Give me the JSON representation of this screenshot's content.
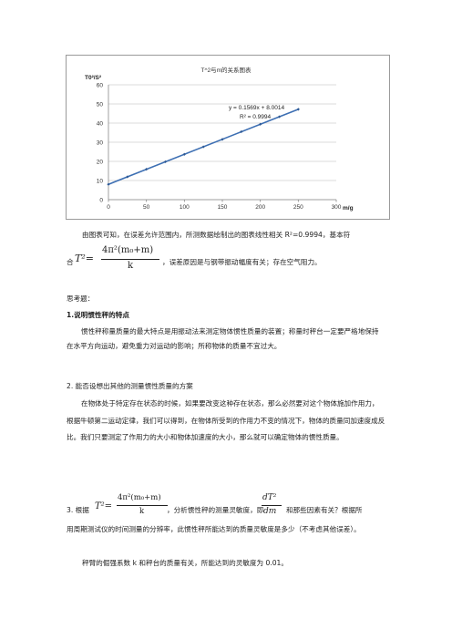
{
  "chart_data": {
    "type": "scatter",
    "title": "T^2与m的关系图表",
    "ylabel": "T0²/S²",
    "xlabel": "m/g",
    "xlim": [
      0,
      300
    ],
    "ylim": [
      0,
      60
    ],
    "xticks": [
      0,
      50,
      100,
      150,
      200,
      250,
      300
    ],
    "yticks": [
      0,
      10,
      20,
      30,
      40,
      50,
      60
    ],
    "grid": "horizontal",
    "series": [
      {
        "x": [
          0,
          25,
          50,
          75,
          100,
          125,
          150,
          175,
          200,
          225,
          250
        ],
        "y": [
          8.0,
          11.9,
          15.9,
          19.8,
          23.7,
          27.6,
          31.5,
          35.5,
          39.4,
          43.3,
          47.2
        ]
      }
    ],
    "trendline": {
      "slope": 0.1569,
      "intercept": 8.0014,
      "x_range": [
        0,
        250
      ]
    },
    "annotations": [
      "y = 0.1569x + 8.0014",
      "R² = 0.9994"
    ]
  },
  "text": {
    "conclusion_line1": "由图表可知，在误差允许范围内，所测数据绘制出的图表线性相关 R²=0.9994，基本符",
    "conclusion_he": "合",
    "conclusion_line2": "，误差原因是与钢带振动幅度有关；存在空气阻力。",
    "questions_title": "思考题：",
    "q1_title": "1.说明惯性秤的特点",
    "q1_body": "惯性秤称量质量的最大特点是用振动法来测定物体惯性质量的装置；称量时秤台一定要严格地保持在水平方向运动，避免重力对运动的影响；所称物体的质量不宜过大。",
    "q2_title": "2. 能否设想出其他的测量惯性质量的方案",
    "q2_body": "在物体处于特定存在状态的时候，如果要改变这种存在状态，那么必然要对这个物体施加作用力，根据牛顿第二运动定律，我们可以得到，在物体所受到的作用力不变的情况下，物体的质量同加速度成反比。我们只要测定了作用力的大小和物体加速度的大小，那么就可以确定物体的惯性质量。",
    "q3_prefix": "3. 根据",
    "q3_mid1": "，分析惯性秤的测量灵敏度，即",
    "q3_mid2": "和那些因素有关？根据所",
    "q3_line2": "用周期测试仪的时间测量的分辨率，此惯性秤所能达到的质量灵敏度是多少（不考虑其他误差）。",
    "q3_answer": "秤臂的倔强系数 k 和秤台的质量有关，所能达到的灵敏度为 0.01。"
  },
  "formula": {
    "lhs": "T²=",
    "numerator": "4π²(m₀+m)",
    "denominator": "k",
    "deriv_num": "dT²",
    "deriv_den": "dm"
  }
}
